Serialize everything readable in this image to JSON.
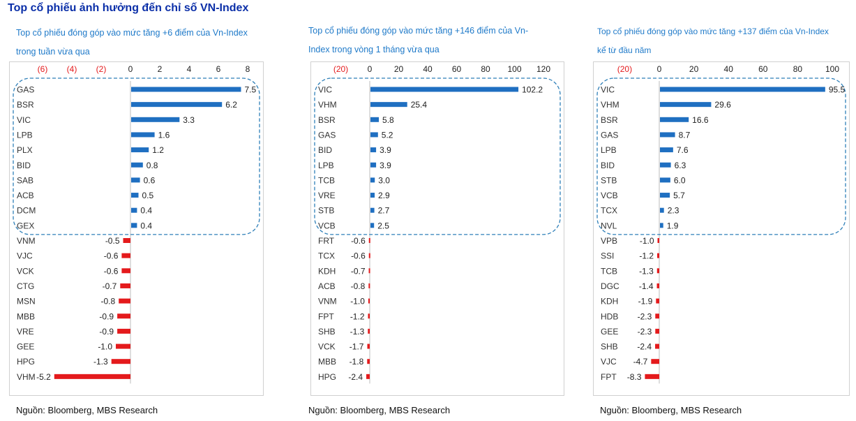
{
  "page_title": "Top cổ phiếu ảnh hưởng đến chỉ số VN-Index",
  "colors": {
    "positive": "#1f6fc1",
    "negative": "#e41a1c",
    "negative_tick": "#e41a1c",
    "title": "#0b2fa8",
    "subtitle": "#1f7ac9",
    "highlight_border": "#2e7fb8"
  },
  "panels": [
    {
      "subtitle_line1": "Top cổ phiếu đóng góp vào mức tăng +6 điểm của Vn-Index",
      "subtitle_line2": "trong tuần vừa qua",
      "source": "Nguồn: Bloomberg, MBS Research"
    },
    {
      "subtitle_line1": "Top cổ phiếu đóng góp vào mức tăng +146 điểm của Vn-",
      "subtitle_line2": "Index trong vòng 1 tháng vừa qua",
      "source": "Nguồn: Bloomberg, MBS Research"
    },
    {
      "subtitle_line1": "Top cổ phiếu đóng góp vào mức tăng +137 điểm của Vn-Index",
      "subtitle_line2": "kể từ đầu năm",
      "source": "Nguồn: Bloomberg, MBS Research"
    }
  ],
  "chart_data": [
    {
      "type": "bar",
      "orientation": "horizontal",
      "categories": [
        "GAS",
        "BSR",
        "VIC",
        "LPB",
        "PLX",
        "BID",
        "SAB",
        "ACB",
        "DCM",
        "GEX",
        "VNM",
        "VJC",
        "VCK",
        "CTG",
        "MSN",
        "MBB",
        "VRE",
        "GEE",
        "HPG",
        "VHM"
      ],
      "values": [
        7.5,
        6.2,
        3.3,
        1.6,
        1.2,
        0.8,
        0.6,
        0.5,
        0.4,
        0.4,
        -0.5,
        -0.6,
        -0.6,
        -0.7,
        -0.8,
        -0.9,
        -0.9,
        -1.0,
        -1.3,
        -5.2
      ],
      "value_labels": [
        "7.5",
        "6.2",
        "3.3",
        "1.6",
        "1.2",
        "0.8",
        "0.6",
        "0.5",
        "0.4",
        "0.4",
        "-0.5",
        "-0.6",
        "-0.6",
        "-0.7",
        "-0.8",
        "-0.9",
        "-0.9",
        "-1.0",
        "-1.3",
        "-5.2"
      ],
      "xlim": [
        -8,
        8
      ],
      "ticks": [
        -6,
        -4,
        -2,
        0,
        2,
        4,
        6,
        8
      ],
      "tick_labels": [
        "(6)",
        "(4)",
        "(2)",
        "0",
        "2",
        "4",
        "6",
        "8"
      ],
      "highlighted_top": 10
    },
    {
      "type": "bar",
      "orientation": "horizontal",
      "categories": [
        "VIC",
        "VHM",
        "BSR",
        "GAS",
        "BID",
        "LPB",
        "TCB",
        "VRE",
        "STB",
        "VCB",
        "FRT",
        "TCX",
        "KDH",
        "ACB",
        "VNM",
        "FPT",
        "SHB",
        "VCK",
        "MBB",
        "HPG"
      ],
      "values": [
        102.2,
        25.4,
        5.8,
        5.2,
        3.9,
        3.9,
        3.0,
        2.9,
        2.7,
        2.5,
        -0.6,
        -0.6,
        -0.7,
        -0.8,
        -1.0,
        -1.2,
        -1.3,
        -1.7,
        -1.8,
        -2.4
      ],
      "value_labels": [
        "102.2",
        "25.4",
        "5.8",
        "5.2",
        "3.9",
        "3.9",
        "3.0",
        "2.9",
        "2.7",
        "2.5",
        "-0.6",
        "-0.6",
        "-0.7",
        "-0.8",
        "-1.0",
        "-1.2",
        "-1.3",
        "-1.7",
        "-1.8",
        "-2.4"
      ],
      "xlim": [
        -20,
        130
      ],
      "ticks": [
        -20,
        0,
        20,
        40,
        60,
        80,
        100,
        120
      ],
      "tick_labels": [
        "(20)",
        "0",
        "20",
        "40",
        "60",
        "80",
        "100",
        "120"
      ],
      "highlighted_top": 10
    },
    {
      "type": "bar",
      "orientation": "horizontal",
      "categories": [
        "VIC",
        "VHM",
        "BSR",
        "GAS",
        "LPB",
        "BID",
        "STB",
        "VCB",
        "TCX",
        "NVL",
        "VPB",
        "SSI",
        "TCB",
        "DGC",
        "KDH",
        "HDB",
        "GEE",
        "SHB",
        "VJC",
        "FPT"
      ],
      "values": [
        95.5,
        29.6,
        16.6,
        8.7,
        7.6,
        6.3,
        6.0,
        5.7,
        2.3,
        1.9,
        -1.0,
        -1.2,
        -1.3,
        -1.4,
        -1.9,
        -2.3,
        -2.3,
        -2.4,
        -4.7,
        -8.3
      ],
      "value_labels": [
        "95.5",
        "29.6",
        "16.6",
        "8.7",
        "7.6",
        "6.3",
        "6.0",
        "5.7",
        "2.3",
        "1.9",
        "-1.0",
        "-1.2",
        "-1.3",
        "-1.4",
        "-1.9",
        "-2.3",
        "-2.3",
        "-2.4",
        "-4.7",
        "-8.3"
      ],
      "xlim": [
        -20,
        100
      ],
      "ticks": [
        -20,
        0,
        20,
        40,
        60,
        80,
        100
      ],
      "tick_labels": [
        "(20)",
        "0",
        "20",
        "40",
        "60",
        "80",
        "100"
      ],
      "highlighted_top": 10
    }
  ]
}
